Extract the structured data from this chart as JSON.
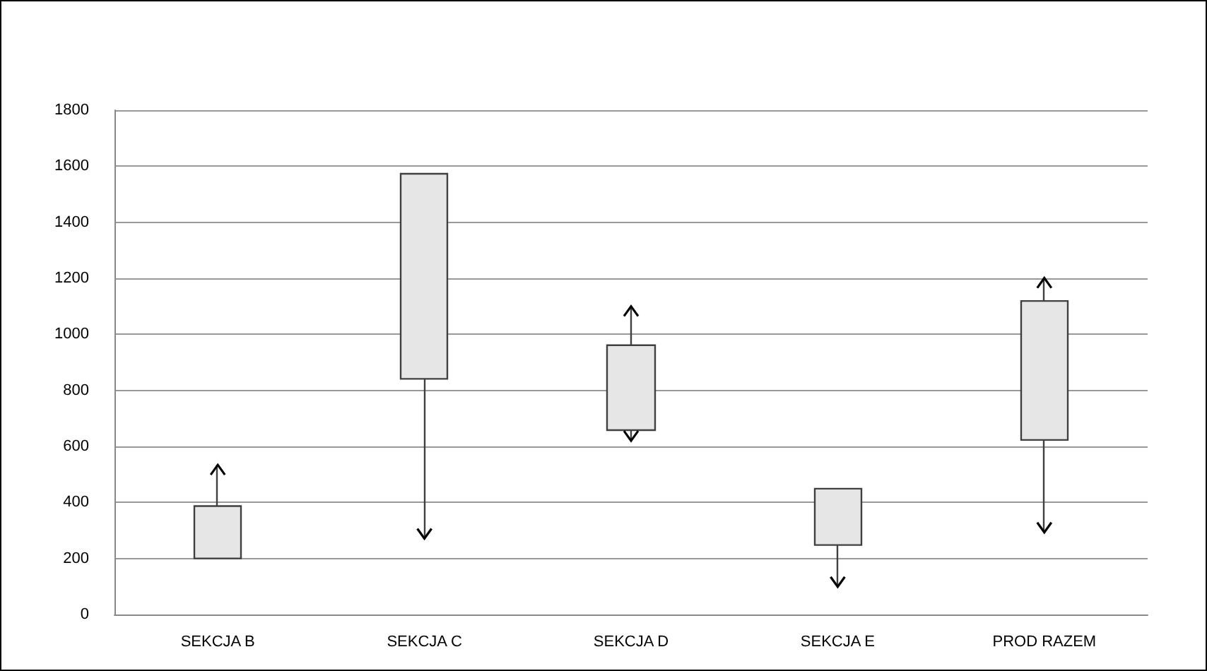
{
  "chart_data": {
    "type": "candlestick",
    "categories": [
      "SEKCJA B",
      "SEKCJA C",
      "SEKCJA D",
      "SEKCJA E",
      "PROD RAZEM"
    ],
    "ohlc": [
      [
        200,
        534,
        200,
        387
      ],
      [
        841,
        1573,
        271,
        1573
      ],
      [
        658,
        1100,
        620,
        961
      ],
      [
        248,
        449,
        99,
        449
      ],
      [
        623,
        1201,
        293,
        1119
      ]
    ],
    "color": "#e6e6e6",
    "ylim": [
      0,
      1800
    ],
    "yticks": [
      0,
      200,
      400,
      600,
      800,
      1000,
      1200,
      1400,
      1600,
      1800
    ],
    "grid": "y"
  }
}
